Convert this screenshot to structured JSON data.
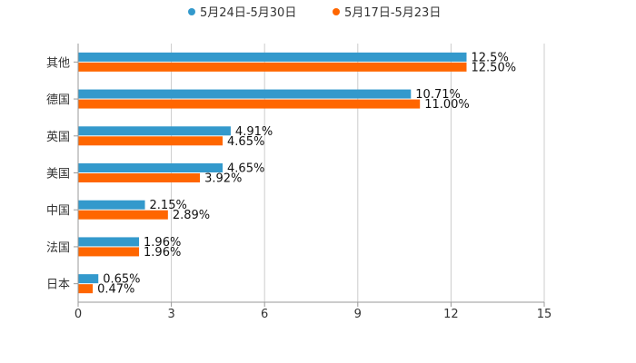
{
  "chart_data": {
    "type": "bar",
    "orientation": "horizontal",
    "title": "",
    "xlabel": "",
    "ylabel": "",
    "xlim": [
      0,
      15
    ],
    "xticks": [
      0,
      3,
      6,
      9,
      12,
      15
    ],
    "grid": true,
    "legend_position": "top-center",
    "categories": [
      "其他",
      "德国",
      "英国",
      "美国",
      "中国",
      "法国",
      "日本"
    ],
    "series": [
      {
        "name": "5月24日-5月30日",
        "color": "#3399cc",
        "values": [
          12.5,
          10.71,
          4.91,
          4.65,
          2.15,
          1.96,
          0.65
        ],
        "labels": [
          "12.5%",
          "10.71%",
          "4.91%",
          "4.65%",
          "2.15%",
          "1.96%",
          "0.65%"
        ]
      },
      {
        "name": "5月17日-5月23日",
        "color": "#ff6600",
        "values": [
          12.5,
          11.0,
          4.65,
          3.92,
          2.89,
          1.96,
          0.47
        ],
        "labels": [
          "12.50%",
          "11.00%",
          "4.65%",
          "3.92%",
          "2.89%",
          "1.96%",
          "0.47%"
        ]
      }
    ]
  }
}
